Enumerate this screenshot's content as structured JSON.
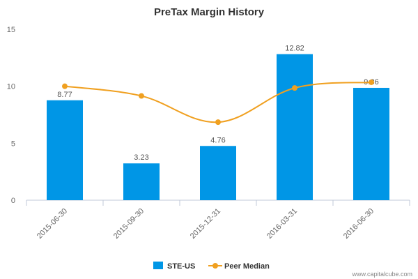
{
  "chart_data": {
    "type": "bar",
    "title": "PreTax Margin History",
    "categories": [
      "2015-06-30",
      "2015-09-30",
      "2015-12-31",
      "2016-03-31",
      "2016-06-30"
    ],
    "series": [
      {
        "name": "STE-US",
        "type": "bar",
        "values": [
          8.77,
          3.23,
          4.76,
          12.82,
          9.86
        ],
        "color": "#0096e6"
      },
      {
        "name": "Peer Median",
        "type": "line",
        "values": [
          10.0,
          9.15,
          6.85,
          9.85,
          10.35
        ],
        "color": "#f0a020"
      }
    ],
    "data_labels": [
      "8.77",
      "3.23",
      "4.76",
      "12.82",
      "9.86"
    ],
    "y_ticks": [
      "0",
      "5",
      "10",
      "15"
    ],
    "ylim": [
      0,
      15
    ],
    "grid": false,
    "legend": "bottom-center"
  },
  "watermark": "www.capitalcube.com"
}
